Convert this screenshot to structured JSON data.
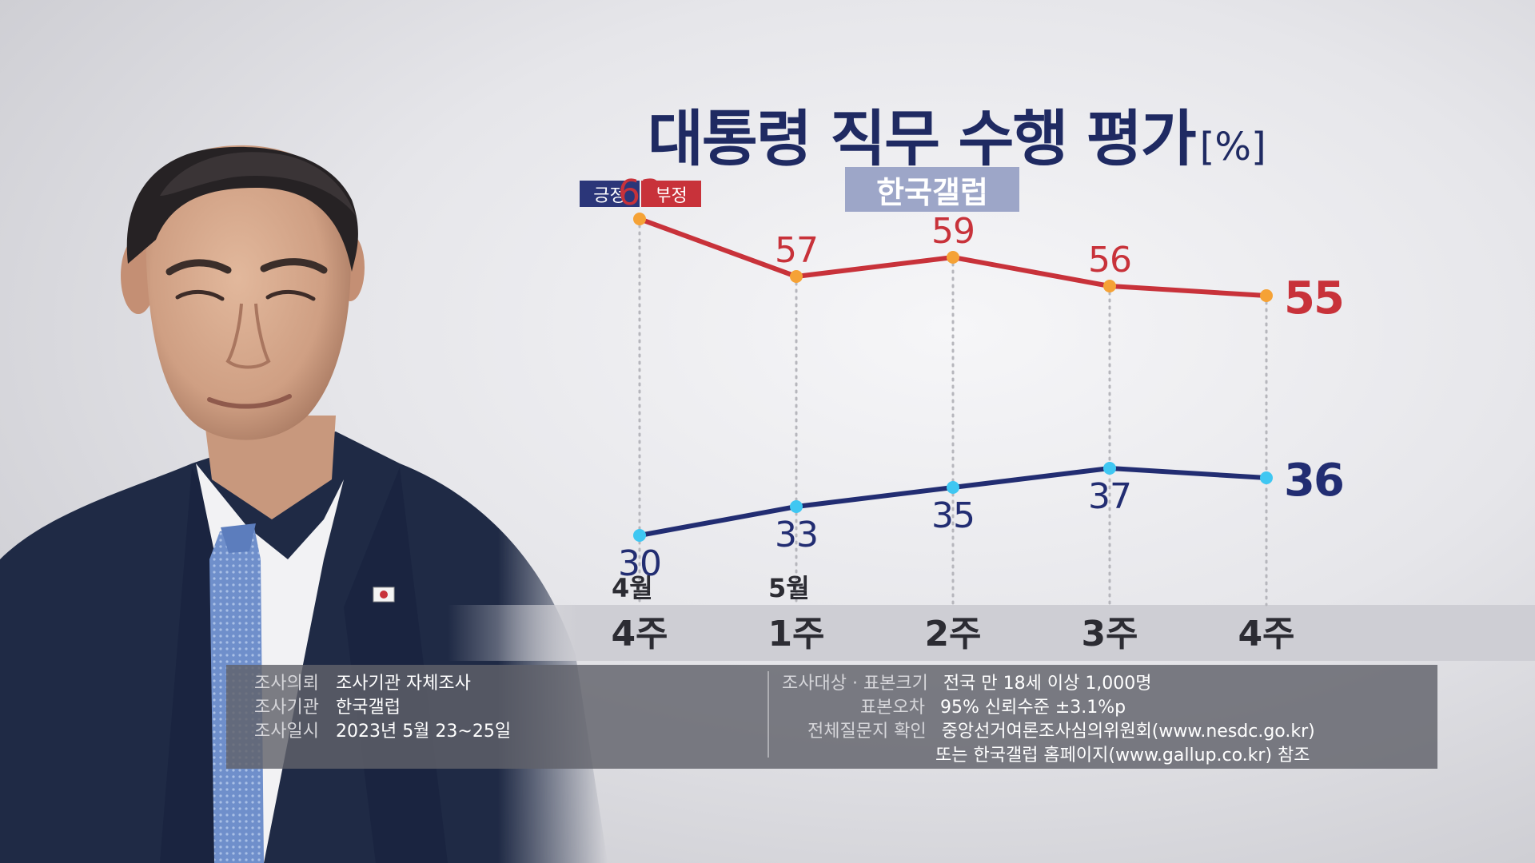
{
  "title": "대통령 직무 수행 평가",
  "title_unit": "[%]",
  "source_badge": "한국갤럽",
  "legend": {
    "positive": "긍정",
    "negative": "부정"
  },
  "colors": {
    "positive": "#222d72",
    "negative": "#c8323a",
    "positive_dot": "#3fc7f2",
    "negative_dot": "#f5a236"
  },
  "chart_data": {
    "type": "line",
    "categories": [
      "4주",
      "1주",
      "2주",
      "3주",
      "4주"
    ],
    "month_labels": [
      "4월",
      "5월",
      "",
      "",
      ""
    ],
    "series": [
      {
        "name": "부정",
        "values": [
          63,
          57,
          59,
          56,
          55
        ]
      },
      {
        "name": "긍정",
        "values": [
          30,
          33,
          35,
          37,
          36
        ]
      }
    ],
    "ylim": [
      20,
      70
    ],
    "grid": false
  },
  "info": {
    "left": [
      {
        "label": "조사의뢰",
        "value": "조사기관 자체조사"
      },
      {
        "label": "조사기관",
        "value": "한국갤럽"
      },
      {
        "label": "조사일시",
        "value": "2023년 5월 23~25일"
      }
    ],
    "right": [
      {
        "label": "조사대상 · 표본크기",
        "value": "전국 만 18세 이상 1,000명"
      },
      {
        "label": "표본오차",
        "value": "95% 신뢰수준 ±3.1%p"
      },
      {
        "label": "전체질문지 확인",
        "value": "중앙선거여론조사심의위원회(www.nesdc.go.kr)"
      },
      {
        "label": "",
        "value": "또는 한국갤럽 홈페이지(www.gallup.co.kr) 참조"
      }
    ]
  }
}
